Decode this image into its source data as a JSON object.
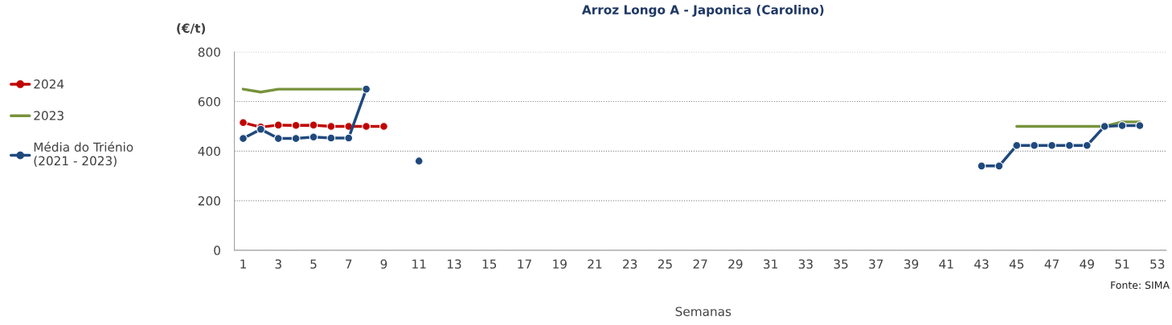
{
  "chart_data": {
    "type": "line",
    "title": "Arroz Longo A - Japonica (Carolino)",
    "ylabel": "(€/t)",
    "xlabel": "Semanas",
    "categories": [
      "1",
      null,
      "3",
      null,
      "5",
      null,
      "7",
      null,
      "9",
      null,
      "11",
      null,
      "13",
      null,
      "15",
      null,
      "17",
      null,
      "19",
      null,
      "21",
      null,
      "23",
      null,
      "25",
      null,
      "27",
      null,
      "29",
      null,
      "31",
      null,
      "33",
      null,
      "35",
      null,
      "37",
      null,
      "39",
      null,
      "41",
      null,
      "43",
      null,
      "45",
      null,
      "47",
      null,
      "49",
      null,
      "51",
      null,
      "53"
    ],
    "series": [
      {
        "name": "2024",
        "color": "#c00000",
        "marker": "circle",
        "values": [
          515,
          497,
          505,
          504,
          505,
          500,
          500,
          500,
          500,
          null,
          null,
          null,
          null,
          null,
          null,
          null,
          null,
          null,
          null,
          null,
          null,
          null,
          null,
          null,
          null,
          null,
          null,
          null,
          null,
          null,
          null,
          null,
          null,
          null,
          null,
          null,
          null,
          null,
          null,
          null,
          null,
          null,
          null,
          null,
          null,
          null,
          null,
          null,
          null,
          null,
          null,
          null,
          null
        ]
      },
      {
        "name": "2023",
        "color": "#77933c",
        "marker": "none",
        "values": [
          650,
          638,
          650,
          650,
          650,
          650,
          650,
          650,
          null,
          null,
          null,
          null,
          null,
          null,
          null,
          null,
          null,
          null,
          null,
          null,
          null,
          null,
          null,
          null,
          null,
          null,
          null,
          null,
          null,
          null,
          null,
          null,
          null,
          null,
          null,
          null,
          null,
          null,
          null,
          null,
          null,
          null,
          null,
          null,
          500,
          500,
          500,
          500,
          500,
          500,
          518,
          518,
          null
        ]
      },
      {
        "name": "Média do Triénio\n(2021 - 2023)",
        "color": "#1f497d",
        "marker": "circle",
        "values": [
          451,
          488,
          451,
          451,
          457,
          453,
          453,
          650,
          null,
          null,
          360,
          null,
          null,
          null,
          null,
          null,
          null,
          null,
          null,
          null,
          null,
          null,
          null,
          null,
          null,
          null,
          null,
          null,
          null,
          null,
          null,
          null,
          null,
          null,
          null,
          null,
          null,
          null,
          null,
          null,
          null,
          null,
          340,
          340,
          423,
          423,
          423,
          423,
          423,
          500,
          503,
          503,
          null
        ]
      }
    ],
    "ylim": [
      0,
      800
    ],
    "yticks": [
      0,
      200,
      400,
      600,
      800
    ],
    "grid": "y",
    "legend": "left",
    "annotations": [
      "Fonte: SIMA"
    ]
  }
}
